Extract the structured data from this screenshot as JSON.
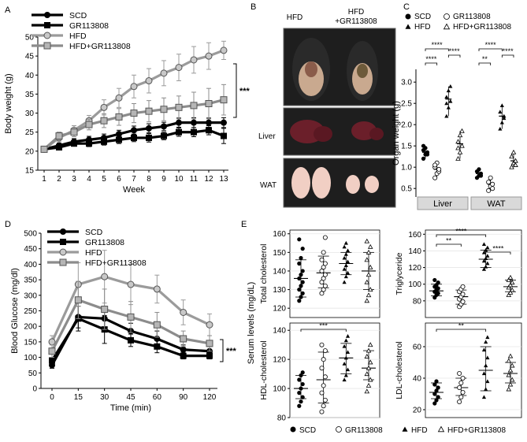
{
  "panel_labels": {
    "a": "A",
    "b": "B",
    "c": "C",
    "d": "D",
    "e": "E"
  },
  "colors": {
    "scd": "#000000",
    "gr": "#000000",
    "hfd": "#9b9b9b",
    "hfdgr": "#8c8c8c",
    "facet_strip": "#d9d9d9",
    "photo_bg": "#1e1e1e"
  },
  "panel_b": {
    "col_hfd": "HFD",
    "col_hfdgr_line1": "HFD",
    "col_hfdgr_line2": "+GR113808",
    "row_liver": "Liver",
    "row_wat": "WAT"
  },
  "chart_data": [
    {
      "id": "A",
      "type": "line",
      "title": "",
      "xlabel": "Week",
      "ylabel": "Body weight (g)",
      "x": [
        1,
        2,
        3,
        4,
        5,
        6,
        7,
        8,
        9,
        10,
        11,
        12,
        13
      ],
      "xlim": [
        1,
        13
      ],
      "ylim": [
        15,
        50
      ],
      "yticks": [
        15,
        20,
        25,
        30,
        35,
        40,
        45,
        50
      ],
      "series": [
        {
          "name": "SCD",
          "marker": "circle-black",
          "values": [
            20.5,
            21.5,
            22.5,
            23,
            23.5,
            24.5,
            25.5,
            26,
            26.5,
            27.5,
            27.5,
            27.5,
            27.5
          ]
        },
        {
          "name": "GR113808",
          "marker": "square-black",
          "values": [
            20.5,
            21,
            22,
            22,
            22.5,
            23,
            23.5,
            23.5,
            24,
            25,
            25,
            25.5,
            24
          ]
        },
        {
          "name": "HFD",
          "marker": "circle-gray",
          "values": [
            20.5,
            23.5,
            25.5,
            28,
            31.5,
            34,
            37,
            38.5,
            40.5,
            42,
            44,
            45,
            46.5
          ]
        },
        {
          "name": "HFD+GR113808",
          "marker": "square-gray",
          "values": [
            20.5,
            24,
            25,
            27,
            28,
            29,
            30,
            30.5,
            31,
            31.5,
            32,
            32.5,
            33.5
          ]
        }
      ],
      "significance": "***"
    },
    {
      "id": "C",
      "type": "scatter",
      "ylabel": "Organ weight (g)",
      "ylim": [
        0.3,
        3.3
      ],
      "yticks": [
        0.5,
        1.0,
        1.5,
        2.0,
        2.5,
        3.0
      ],
      "facets": [
        "Liver",
        "WAT"
      ],
      "legend": [
        "SCD",
        "GR113808",
        "HFD",
        "HFD+GR113808"
      ],
      "groups": [
        {
          "facet": "Liver",
          "name": "SCD",
          "mean": 1.35,
          "values": [
            1.2,
            1.3,
            1.35,
            1.4,
            1.45,
            1.3,
            1.5
          ]
        },
        {
          "facet": "Liver",
          "name": "GR113808",
          "mean": 0.95,
          "values": [
            0.75,
            0.85,
            0.9,
            1.0,
            1.1,
            0.95,
            1.05
          ]
        },
        {
          "facet": "Liver",
          "name": "HFD",
          "mean": 2.6,
          "values": [
            2.2,
            2.4,
            2.55,
            2.65,
            2.8,
            2.9,
            2.5
          ]
        },
        {
          "facet": "Liver",
          "name": "HFD+GR113808",
          "mean": 1.55,
          "values": [
            1.2,
            1.35,
            1.5,
            1.6,
            1.75,
            1.85,
            1.45
          ]
        },
        {
          "facet": "WAT",
          "name": "SCD",
          "mean": 0.85,
          "values": [
            0.75,
            0.8,
            0.85,
            0.9,
            0.95,
            0.8
          ]
        },
        {
          "facet": "WAT",
          "name": "GR113808",
          "mean": 0.6,
          "values": [
            0.45,
            0.55,
            0.6,
            0.65,
            0.75,
            0.5
          ]
        },
        {
          "facet": "WAT",
          "name": "HFD",
          "mean": 2.2,
          "values": [
            1.9,
            2.05,
            2.2,
            2.3,
            2.45,
            2.15
          ]
        },
        {
          "facet": "WAT",
          "name": "HFD+GR113808",
          "mean": 1.15,
          "values": [
            1.0,
            1.1,
            1.15,
            1.25,
            1.35,
            1.05
          ]
        }
      ],
      "significance": [
        {
          "facet": "Liver",
          "from": "SCD",
          "to": "HFD",
          "label": "****"
        },
        {
          "facet": "Liver",
          "from": "SCD",
          "to": "GR113808",
          "label": "****"
        },
        {
          "facet": "Liver",
          "from": "HFD",
          "to": "HFD+GR113808",
          "label": "****"
        },
        {
          "facet": "WAT",
          "from": "SCD",
          "to": "HFD",
          "label": "****"
        },
        {
          "facet": "WAT",
          "from": "SCD",
          "to": "GR113808",
          "label": "**"
        },
        {
          "facet": "WAT",
          "from": "HFD",
          "to": "HFD+GR113808",
          "label": "****"
        }
      ]
    },
    {
      "id": "D",
      "type": "line",
      "xlabel": "Time (min)",
      "ylabel": "Blood Glucose (mg/dl)",
      "x": [
        0,
        15,
        30,
        45,
        60,
        90,
        120
      ],
      "ylim": [
        0,
        500
      ],
      "yticks": [
        0,
        50,
        100,
        150,
        200,
        250,
        300,
        350,
        400,
        450,
        500
      ],
      "series": [
        {
          "name": "SCD",
          "marker": "circle-black",
          "values": [
            75,
            230,
            225,
            185,
            160,
            125,
            120
          ]
        },
        {
          "name": "GR113808",
          "marker": "square-black",
          "values": [
            90,
            225,
            190,
            155,
            135,
            105,
            105
          ]
        },
        {
          "name": "HFD",
          "marker": "circle-gray",
          "values": [
            150,
            335,
            360,
            335,
            320,
            245,
            205
          ]
        },
        {
          "name": "HFD+GR113808",
          "marker": "square-gray",
          "values": [
            120,
            285,
            255,
            230,
            205,
            160,
            145
          ]
        }
      ],
      "significance": "***"
    },
    {
      "id": "E",
      "type": "scatter",
      "ylabel": "Serum levels (mg/dL)",
      "legend": [
        "SCD",
        "GR113808",
        "HFD",
        "HFD+GR113808"
      ],
      "subplots": [
        {
          "name": "Total cholesterol",
          "ylim": [
            115,
            162
          ],
          "yticks": [
            120,
            130,
            140,
            150,
            160
          ],
          "groups": [
            {
              "name": "SCD",
              "mean": 136,
              "sd_low": 126,
              "sd_high": 146,
              "values": [
                124,
                126,
                128,
                130,
                132,
                134,
                136,
                138,
                140,
                144,
                147,
                152,
                157
              ]
            },
            {
              "name": "GR113808",
              "mean": 139,
              "sd_low": 131,
              "sd_high": 148,
              "values": [
                128,
                130,
                132,
                134,
                136,
                138,
                140,
                142,
                144,
                146,
                150,
                158
              ]
            },
            {
              "name": "HFD",
              "mean": 144,
              "sd_low": 138,
              "sd_high": 150,
              "values": [
                134,
                137,
                139,
                141,
                143,
                145,
                147,
                149,
                151,
                153,
                155
              ]
            },
            {
              "name": "HFD+GR113808",
              "mean": 140,
              "sd_low": 130,
              "sd_high": 150,
              "values": [
                124,
                127,
                130,
                134,
                138,
                142,
                146,
                150,
                153,
                156
              ]
            }
          ]
        },
        {
          "name": "Triglyceride",
          "ylim": [
            60,
            165
          ],
          "yticks": [
            80,
            100,
            120,
            140,
            160
          ],
          "groups": [
            {
              "name": "SCD",
              "mean": 92,
              "sd_low": 86,
              "sd_high": 100,
              "values": [
                84,
                87,
                89,
                91,
                93,
                95,
                97,
                99,
                102,
                105
              ]
            },
            {
              "name": "GR113808",
              "mean": 85,
              "sd_low": 76,
              "sd_high": 93,
              "values": [
                73,
                76,
                79,
                82,
                85,
                88,
                91,
                94,
                97
              ]
            },
            {
              "name": "HFD",
              "mean": 130,
              "sd_low": 120,
              "sd_high": 141,
              "values": [
                118,
                121,
                125,
                128,
                131,
                134,
                138,
                141,
                144,
                148
              ]
            },
            {
              "name": "HFD+GR113808",
              "mean": 97,
              "sd_low": 91,
              "sd_high": 105,
              "values": [
                87,
                90,
                93,
                96,
                99,
                102,
                105,
                108
              ]
            }
          ],
          "significance": [
            {
              "from": "SCD",
              "to": "GR113808",
              "label": "**"
            },
            {
              "from": "SCD",
              "to": "HFD",
              "label": "****"
            },
            {
              "from": "HFD",
              "to": "HFD+GR113808",
              "label": "****"
            }
          ]
        },
        {
          "name": "HDL-cholesterol",
          "ylim": [
            80,
            145
          ],
          "yticks": [
            80,
            100,
            120,
            140
          ],
          "groups": [
            {
              "name": "SCD",
              "mean": 100,
              "sd_low": 93,
              "sd_high": 109,
              "values": [
                88,
                91,
                94,
                97,
                100,
                103,
                106,
                109,
                111
              ]
            },
            {
              "name": "GR113808",
              "mean": 106,
              "sd_low": 90,
              "sd_high": 125,
              "values": [
                84,
                88,
                92,
                97,
                102,
                108,
                114,
                120,
                126,
                130
              ]
            },
            {
              "name": "HFD",
              "mean": 121,
              "sd_low": 110,
              "sd_high": 131,
              "values": [
                106,
                109,
                113,
                117,
                121,
                125,
                129,
                133,
                136
              ]
            },
            {
              "name": "HFD+GR113808",
              "mean": 114,
              "sd_low": 106,
              "sd_high": 126,
              "values": [
                98,
                102,
                106,
                110,
                114,
                118,
                122,
                126,
                130
              ]
            }
          ],
          "significance": [
            {
              "from": "SCD",
              "to": "HFD",
              "label": "***"
            }
          ]
        },
        {
          "name": "LDL-cholesterol",
          "ylim": [
            15,
            75
          ],
          "yticks": [
            20,
            40,
            60
          ],
          "groups": [
            {
              "name": "SCD",
              "mean": 31,
              "sd_low": 27,
              "sd_high": 37,
              "values": [
                24,
                26,
                28,
                30,
                32,
                34,
                36,
                38
              ]
            },
            {
              "name": "GR113808",
              "mean": 34,
              "sd_low": 29,
              "sd_high": 40,
              "values": [
                25,
                28,
                31,
                34,
                37,
                40,
                43
              ]
            },
            {
              "name": "HFD",
              "mean": 45,
              "sd_low": 32,
              "sd_high": 60,
              "values": [
                28,
                33,
                38,
                43,
                48,
                53,
                58,
                63,
                66
              ]
            },
            {
              "name": "HFD+GR113808",
              "mean": 43,
              "sd_low": 37,
              "sd_high": 50,
              "values": [
                33,
                36,
                39,
                42,
                45,
                48,
                51,
                54
              ]
            }
          ],
          "significance": [
            {
              "from": "SCD",
              "to": "HFD",
              "label": "**"
            }
          ]
        }
      ]
    }
  ]
}
